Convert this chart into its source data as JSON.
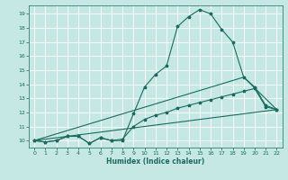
{
  "title": "",
  "xlabel": "Humidex (Indice chaleur)",
  "ylabel": "",
  "bg_color": "#c5e8e5",
  "line_color": "#1a6b5e",
  "grid_color": "#ffffff",
  "xlim": [
    -0.5,
    22.5
  ],
  "ylim": [
    9.5,
    19.6
  ],
  "yticks": [
    10,
    11,
    12,
    13,
    14,
    15,
    16,
    17,
    18,
    19
  ],
  "xticks": [
    0,
    1,
    2,
    3,
    4,
    5,
    6,
    7,
    8,
    9,
    10,
    11,
    12,
    13,
    14,
    15,
    16,
    17,
    18,
    19,
    20,
    21,
    22
  ],
  "line1_x": [
    0,
    1,
    2,
    3,
    4,
    5,
    6,
    7,
    8,
    9,
    10,
    11,
    12,
    13,
    14,
    15,
    16,
    17,
    18,
    19,
    20,
    21,
    22
  ],
  "line1_y": [
    10.0,
    9.9,
    10.0,
    10.3,
    10.3,
    9.8,
    10.2,
    10.0,
    10.0,
    11.9,
    13.8,
    14.7,
    15.3,
    18.1,
    18.8,
    19.3,
    19.0,
    17.9,
    17.0,
    14.5,
    13.8,
    12.5,
    12.2
  ],
  "line2_x": [
    0,
    1,
    2,
    3,
    4,
    5,
    6,
    7,
    8,
    9,
    10,
    11,
    12,
    13,
    14,
    15,
    16,
    17,
    18,
    19,
    20,
    21,
    22
  ],
  "line2_y": [
    10.0,
    9.9,
    10.0,
    10.3,
    10.3,
    9.8,
    10.2,
    10.0,
    10.1,
    11.0,
    11.5,
    11.8,
    12.0,
    12.3,
    12.5,
    12.7,
    12.9,
    13.1,
    13.3,
    13.5,
    13.7,
    12.4,
    12.2
  ],
  "line3_x": [
    0,
    22
  ],
  "line3_y": [
    10.0,
    12.2
  ],
  "line4_x": [
    0,
    19,
    22
  ],
  "line4_y": [
    10.0,
    14.5,
    12.2
  ],
  "marker_size": 2.5,
  "linewidth": 0.8
}
